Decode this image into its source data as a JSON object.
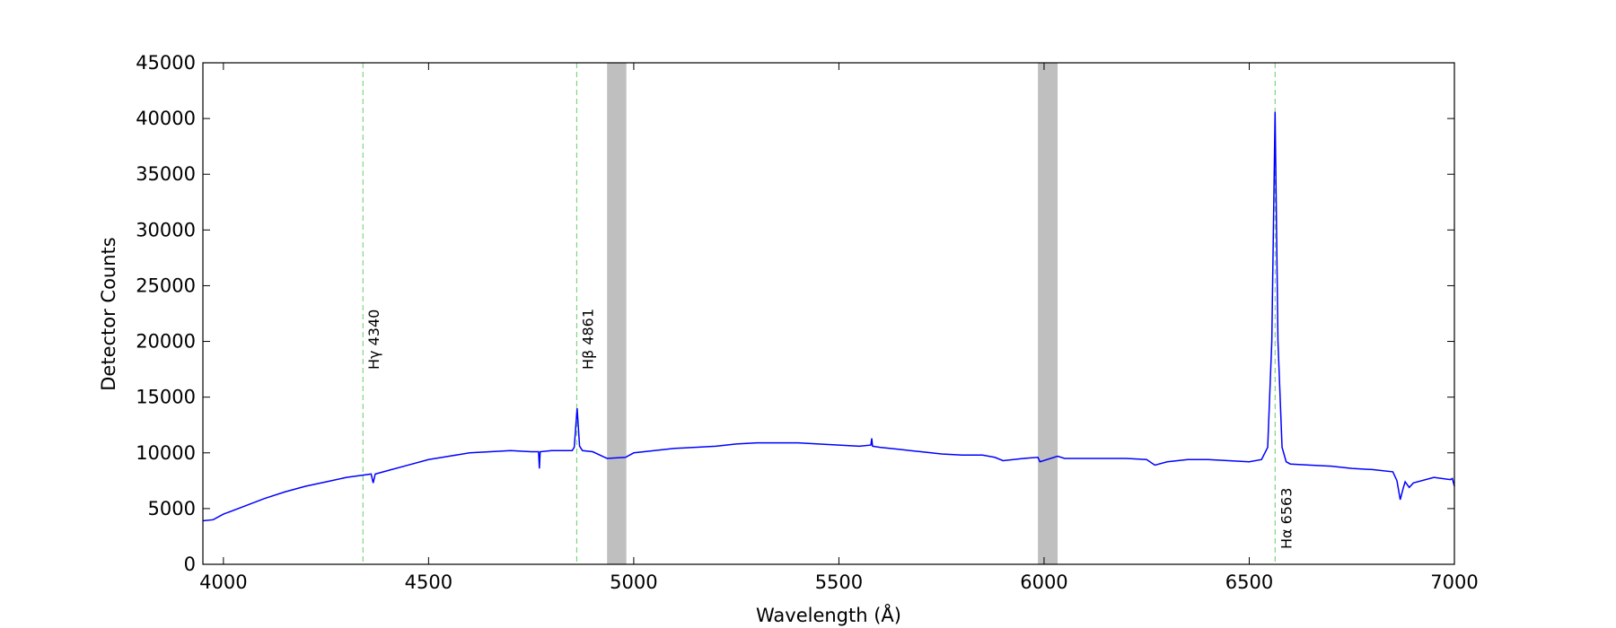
{
  "chart_data": {
    "type": "line",
    "xlabel": "Wavelength (Å)",
    "ylabel": "Detector Counts",
    "xlim": [
      3950,
      7000
    ],
    "ylim": [
      0,
      45000
    ],
    "xticks": [
      4000,
      4500,
      5000,
      5500,
      6000,
      6500,
      7000
    ],
    "yticks": [
      0,
      5000,
      10000,
      15000,
      20000,
      25000,
      30000,
      35000,
      40000,
      45000
    ],
    "shaded_regions": [
      [
        4935,
        4982
      ],
      [
        5985,
        6033
      ]
    ],
    "shade_color": "#bfbfbf",
    "reference_lines": [
      {
        "x": 4340,
        "label": "Hγ 4340"
      },
      {
        "x": 4861,
        "label": "Hβ 4861"
      },
      {
        "x": 6563,
        "label": "Hα 6563"
      }
    ],
    "reference_color": "#66cc66",
    "x": [
      3950,
      3975,
      4000,
      4050,
      4100,
      4150,
      4200,
      4250,
      4300,
      4340,
      4360,
      4365,
      4370,
      4400,
      4450,
      4500,
      4550,
      4600,
      4650,
      4700,
      4750,
      4768,
      4770,
      4772,
      4800,
      4850,
      4855,
      4862,
      4868,
      4875,
      4900,
      4935,
      4980,
      5000,
      5050,
      5100,
      5150,
      5200,
      5250,
      5300,
      5350,
      5400,
      5450,
      5500,
      5550,
      5578,
      5580,
      5582,
      5600,
      5650,
      5700,
      5750,
      5800,
      5850,
      5880,
      5900,
      5950,
      5985,
      5990,
      6033,
      6050,
      6100,
      6150,
      6200,
      6250,
      6270,
      6300,
      6350,
      6400,
      6450,
      6500,
      6530,
      6545,
      6555,
      6563,
      6570,
      6580,
      6590,
      6600,
      6650,
      6700,
      6750,
      6800,
      6850,
      6860,
      6868,
      6875,
      6880,
      6890,
      6900,
      6950,
      6990,
      6995,
      7000
    ],
    "series": [
      {
        "color": "#0000ff",
        "values": [
          3900,
          4000,
          4500,
          5200,
          5900,
          6500,
          7000,
          7400,
          7800,
          8000,
          8100,
          7300,
          8100,
          8400,
          8900,
          9400,
          9700,
          10000,
          10100,
          10200,
          10100,
          10100,
          8600,
          10100,
          10200,
          10200,
          10500,
          14000,
          10600,
          10200,
          10100,
          9500,
          9600,
          10000,
          10200,
          10400,
          10500,
          10600,
          10800,
          10900,
          10900,
          10900,
          10800,
          10700,
          10600,
          10700,
          11300,
          10600,
          10500,
          10300,
          10100,
          9900,
          9800,
          9800,
          9600,
          9300,
          9500,
          9600,
          9200,
          9700,
          9500,
          9500,
          9500,
          9500,
          9400,
          8900,
          9200,
          9400,
          9400,
          9300,
          9200,
          9400,
          10500,
          20000,
          40600,
          20000,
          10500,
          9200,
          9000,
          8900,
          8800,
          8600,
          8500,
          8300,
          7500,
          5800,
          6800,
          7400,
          6900,
          7300,
          7800,
          7600,
          7700,
          7000
        ]
      }
    ]
  }
}
